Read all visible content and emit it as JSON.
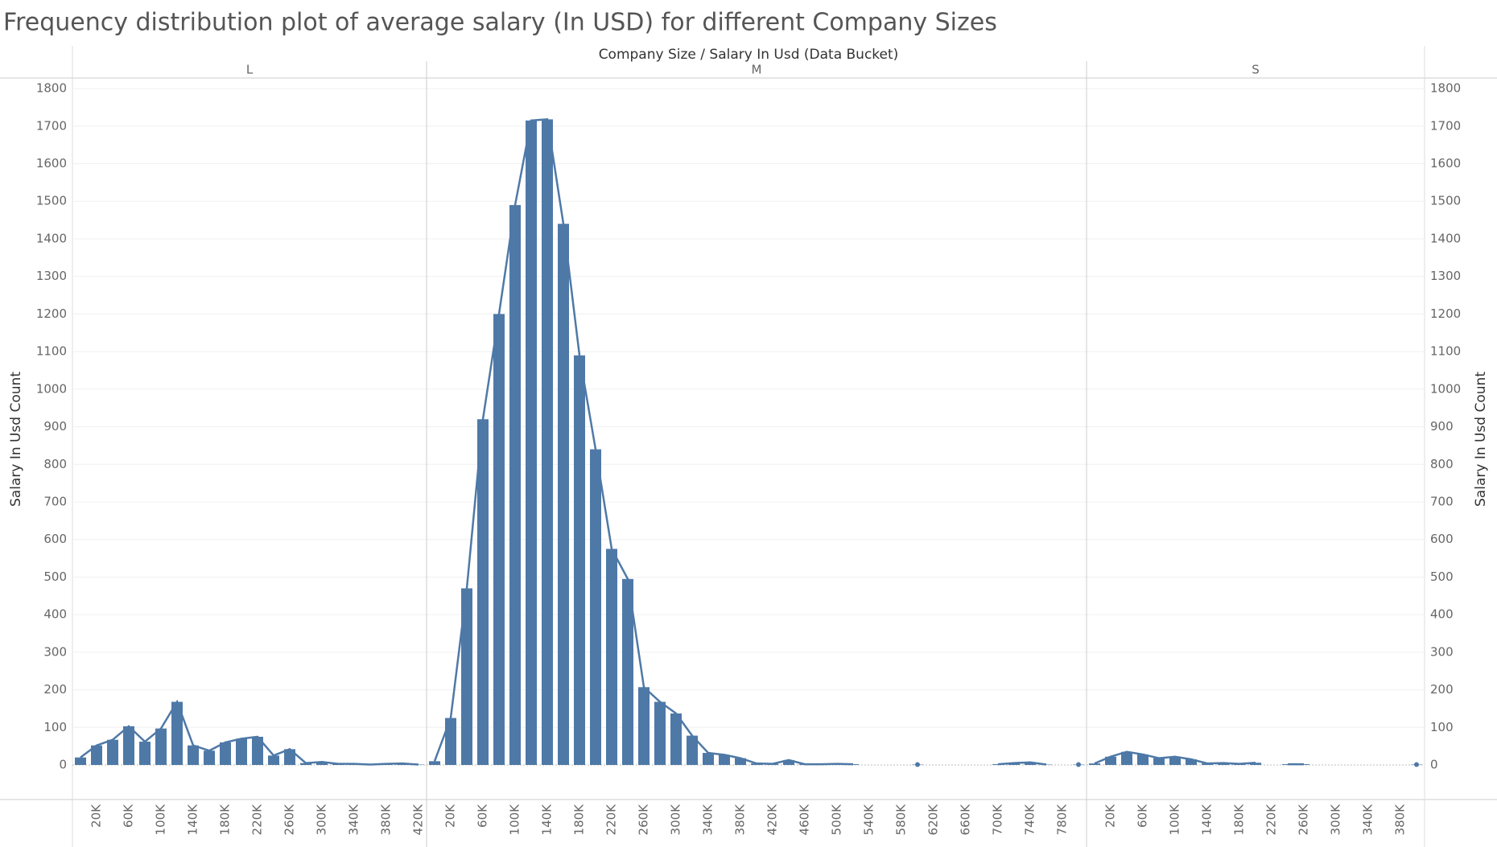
{
  "title": "Frequency distribution plot of average salary (In USD) for different Company Sizes",
  "header": "Company Size / Salary In Usd (Data Bucket)",
  "y_label": "Salary In Usd Count",
  "ylim": [
    0,
    1828
  ],
  "yticks": [
    0,
    100,
    200,
    300,
    400,
    500,
    600,
    700,
    800,
    900,
    1000,
    1100,
    1200,
    1300,
    1400,
    1500,
    1600,
    1700,
    1800
  ],
  "chart_data": [
    {
      "type": "barline",
      "panel": "L",
      "color": "#4e79a7",
      "categories": [
        null,
        "20K",
        null,
        "60K",
        null,
        "100K",
        null,
        "140K",
        null,
        "180K",
        null,
        "220K",
        null,
        "260K",
        null,
        "300K",
        null,
        "340K",
        null,
        "380K",
        null,
        "420K"
      ],
      "values": [
        20,
        52,
        67,
        103,
        62,
        97,
        168,
        52,
        38,
        60,
        70,
        75,
        25,
        42,
        5,
        8,
        3,
        3,
        1,
        3,
        4,
        1
      ]
    },
    {
      "type": "barline",
      "panel": "M",
      "color": "#4e79a7",
      "categories": [
        null,
        "20K",
        null,
        "60K",
        null,
        "100K",
        null,
        "140K",
        null,
        "180K",
        null,
        "220K",
        null,
        "260K",
        null,
        "300K",
        null,
        "340K",
        null,
        "380K",
        null,
        "420K",
        null,
        "460K",
        null,
        "500K",
        null,
        "540K",
        null,
        "580K",
        null,
        "620K",
        null,
        "660K",
        null,
        "700K",
        null,
        "740K",
        null,
        "780K",
        null
      ],
      "values": [
        10,
        125,
        470,
        920,
        1200,
        1490,
        1715,
        1718,
        1440,
        1090,
        840,
        575,
        495,
        207,
        168,
        137,
        78,
        32,
        27,
        18,
        4,
        3,
        13,
        2,
        2,
        3,
        2,
        null,
        null,
        null,
        1,
        null,
        null,
        null,
        null,
        2,
        5,
        7,
        1,
        null,
        1
      ]
    },
    {
      "type": "barline",
      "panel": "S",
      "color": "#4e79a7",
      "categories": [
        null,
        "20K",
        null,
        "60K",
        null,
        "100K",
        null,
        "140K",
        null,
        "180K",
        null,
        "220K",
        null,
        "260K",
        null,
        "300K",
        null,
        "340K",
        null,
        "380K",
        null
      ],
      "values": [
        4,
        22,
        35,
        28,
        18,
        22,
        15,
        4,
        5,
        3,
        6,
        null,
        2,
        2,
        null,
        null,
        null,
        null,
        null,
        null,
        1
      ]
    }
  ]
}
